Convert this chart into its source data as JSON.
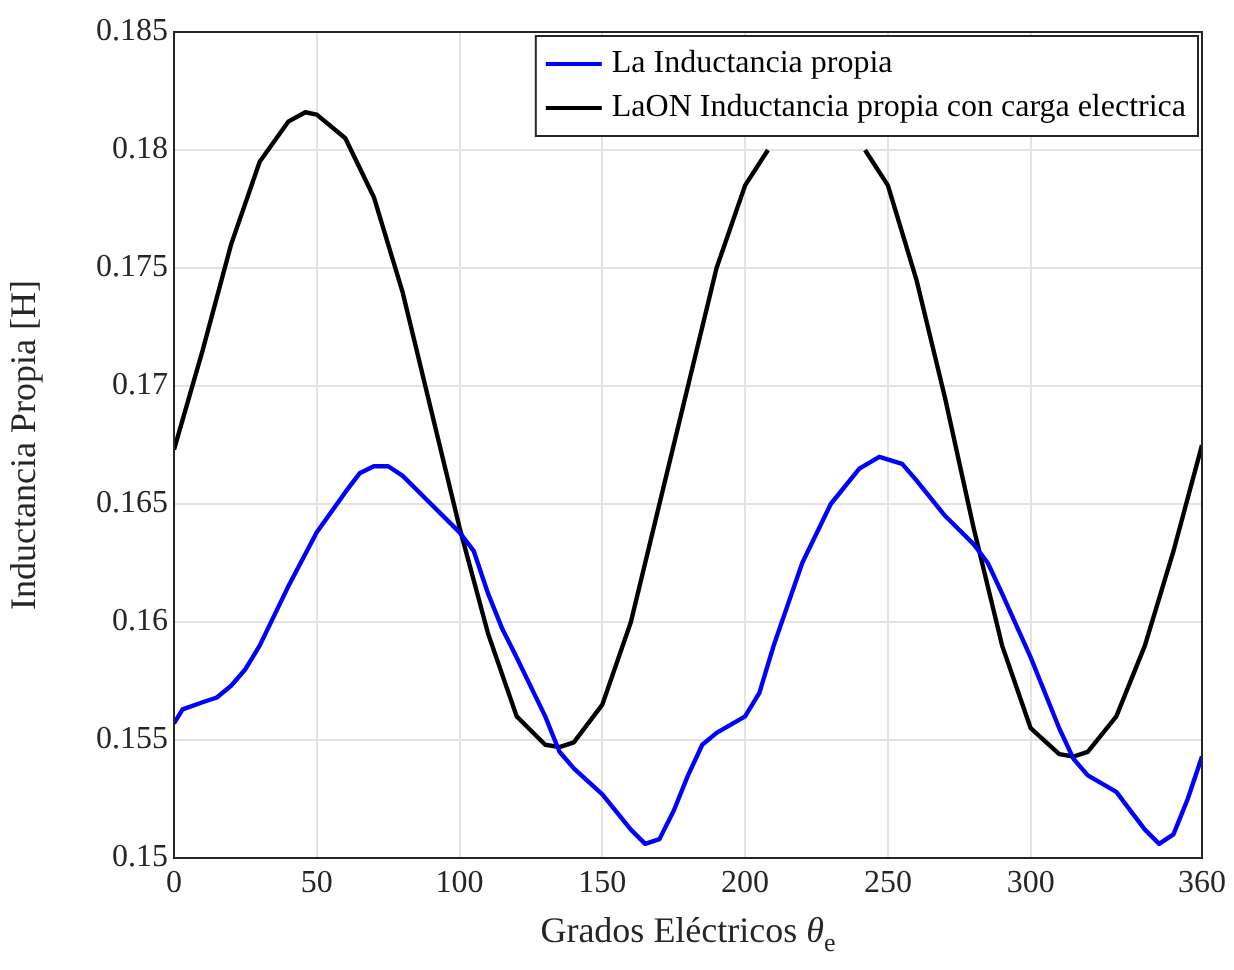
{
  "chart_data": {
    "type": "line",
    "xlabel": "Grados Eléctricos θ$_{e}$",
    "ylabel": "Inductancia Propia [H]",
    "xlim": [
      0,
      360
    ],
    "xticks": [
      0,
      50,
      100,
      150,
      200,
      250,
      300,
      360
    ],
    "ylim": [
      0.15,
      0.185
    ],
    "yticks": [
      0.15,
      0.155,
      0.16,
      0.165,
      0.17,
      0.175,
      0.18,
      0.185
    ],
    "grid": true,
    "legend": "top right",
    "marker": "none",
    "line_style": "solid",
    "series": [
      {
        "name": "La Inductancia propia",
        "color": "#0000ff",
        "x": [
          0,
          3,
          10,
          15,
          20,
          25,
          30,
          40,
          50,
          60,
          65,
          70,
          75,
          80,
          90,
          100,
          105,
          110,
          115,
          120,
          130,
          135,
          140,
          150,
          160,
          165,
          170,
          175,
          180,
          185,
          190,
          200,
          205,
          210,
          220,
          230,
          240,
          247,
          255,
          260,
          270,
          280,
          285,
          290,
          300,
          310,
          315,
          320,
          330,
          335,
          340,
          345,
          350,
          355,
          360
        ],
        "values": [
          0.1557,
          0.1563,
          0.1566,
          0.1568,
          0.1573,
          0.158,
          0.159,
          0.1615,
          0.1638,
          0.1655,
          0.1663,
          0.1666,
          0.1666,
          0.1662,
          0.165,
          0.1638,
          0.163,
          0.1612,
          0.1597,
          0.1585,
          0.156,
          0.1545,
          0.1538,
          0.1527,
          0.1512,
          0.1506,
          0.1508,
          0.152,
          0.1535,
          0.1548,
          0.1553,
          0.156,
          0.157,
          0.159,
          0.1625,
          0.165,
          0.1665,
          0.167,
          0.1667,
          0.166,
          0.1645,
          0.1633,
          0.1625,
          0.1612,
          0.1585,
          0.1555,
          0.1542,
          0.1535,
          0.1528,
          0.152,
          0.1512,
          0.1506,
          0.151,
          0.1525,
          0.1543
        ]
      },
      {
        "name": "LaON Inductancia propia con carga electrica",
        "color": "#000000",
        "x": [
          0,
          10,
          20,
          30,
          40,
          46,
          50,
          60,
          70,
          80,
          90,
          100,
          110,
          120,
          130,
          135,
          140,
          150,
          160,
          170,
          180,
          190,
          200,
          208,
          225,
          242,
          250,
          260,
          270,
          280,
          290,
          300,
          310,
          315,
          320,
          330,
          340,
          350,
          360
        ],
        "values": [
          0.1673,
          0.1715,
          0.176,
          0.1795,
          0.1812,
          0.1816,
          0.1815,
          0.1805,
          0.178,
          0.174,
          0.169,
          0.164,
          0.1595,
          0.156,
          0.1548,
          0.1547,
          0.1549,
          0.1565,
          0.16,
          0.165,
          0.17,
          0.175,
          0.1785,
          0.18,
          null,
          0.18,
          0.1785,
          0.1745,
          0.1695,
          0.164,
          0.159,
          0.1555,
          0.1544,
          0.1543,
          0.1545,
          0.156,
          0.159,
          0.163,
          0.1675
        ]
      }
    ]
  }
}
